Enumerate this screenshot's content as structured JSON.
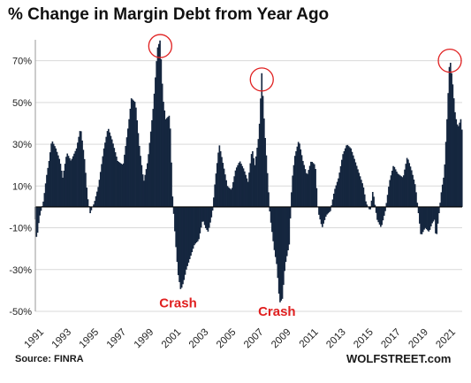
{
  "header": {
    "title": "% Change in Margin Debt from Year Ago"
  },
  "footer": {
    "source": "Source: FINRA",
    "brand": "WOLFSTREET.com"
  },
  "colors": {
    "bars": "#15263f",
    "annotation": "#e02020",
    "circle": "#e02020",
    "grid": "#d9d9d9"
  },
  "chart_data": {
    "type": "bar",
    "title": "% Change in Margin Debt from Year Ago",
    "xlabel": "",
    "ylabel": "",
    "x_range": [
      1991.0,
      2022.1
    ],
    "ylim": [
      -50,
      80
    ],
    "y_ticks": [
      70,
      50,
      30,
      10,
      -10,
      -30,
      -50
    ],
    "y_tick_labels": [
      "70%",
      "50%",
      "30%",
      "10%",
      "-10%",
      "-30%",
      "-50%"
    ],
    "x_tick_labels": [
      "1991",
      "1993",
      "1995",
      "1997",
      "1999",
      "2001",
      "2003",
      "2005",
      "2007",
      "2009",
      "2011",
      "2013",
      "2015",
      "2017",
      "2019",
      "2021"
    ],
    "grid": "horizontal",
    "series": [
      {
        "type": "monthly_bars",
        "keypoints": [
          [
            1991.0,
            -6
          ],
          [
            1991.1,
            -16
          ],
          [
            1991.3,
            -5
          ],
          [
            1991.6,
            3
          ],
          [
            1991.8,
            14
          ],
          [
            1992.0,
            22
          ],
          [
            1992.2,
            32
          ],
          [
            1992.5,
            28
          ],
          [
            1992.8,
            22
          ],
          [
            1993.0,
            14
          ],
          [
            1993.3,
            26
          ],
          [
            1993.6,
            22
          ],
          [
            1994.0,
            28
          ],
          [
            1994.3,
            38
          ],
          [
            1994.6,
            22
          ],
          [
            1994.8,
            5
          ],
          [
            1995.0,
            -3
          ],
          [
            1995.3,
            2
          ],
          [
            1995.6,
            10
          ],
          [
            1996.0,
            28
          ],
          [
            1996.3,
            38
          ],
          [
            1996.6,
            32
          ],
          [
            1997.0,
            22
          ],
          [
            1997.4,
            20
          ],
          [
            1997.8,
            40
          ],
          [
            1998.0,
            52
          ],
          [
            1998.3,
            50
          ],
          [
            1998.6,
            28
          ],
          [
            1998.9,
            12
          ],
          [
            1999.2,
            22
          ],
          [
            1999.6,
            48
          ],
          [
            1999.9,
            76
          ],
          [
            2000.1,
            80
          ],
          [
            2000.3,
            52
          ],
          [
            2000.5,
            42
          ],
          [
            2000.8,
            44
          ],
          [
            2001.0,
            5
          ],
          [
            2001.2,
            -15
          ],
          [
            2001.4,
            -32
          ],
          [
            2001.6,
            -40
          ],
          [
            2001.8,
            -36
          ],
          [
            2002.0,
            -30
          ],
          [
            2002.3,
            -24
          ],
          [
            2002.6,
            -18
          ],
          [
            2002.9,
            -16
          ],
          [
            2003.2,
            -6
          ],
          [
            2003.4,
            -10
          ],
          [
            2003.6,
            -12
          ],
          [
            2003.9,
            -3
          ],
          [
            2004.1,
            12
          ],
          [
            2004.4,
            30
          ],
          [
            2004.7,
            20
          ],
          [
            2005.0,
            10
          ],
          [
            2005.3,
            8
          ],
          [
            2005.6,
            18
          ],
          [
            2005.9,
            22
          ],
          [
            2006.2,
            18
          ],
          [
            2006.5,
            12
          ],
          [
            2006.8,
            28
          ],
          [
            2007.0,
            20
          ],
          [
            2007.3,
            35
          ],
          [
            2007.5,
            64
          ],
          [
            2007.7,
            38
          ],
          [
            2007.9,
            18
          ],
          [
            2008.1,
            -4
          ],
          [
            2008.4,
            -20
          ],
          [
            2008.6,
            -28
          ],
          [
            2008.8,
            -46
          ],
          [
            2009.0,
            -44
          ],
          [
            2009.2,
            -28
          ],
          [
            2009.5,
            -18
          ],
          [
            2009.7,
            12
          ],
          [
            2009.9,
            24
          ],
          [
            2010.2,
            32
          ],
          [
            2010.5,
            22
          ],
          [
            2010.8,
            15
          ],
          [
            2011.1,
            22
          ],
          [
            2011.4,
            20
          ],
          [
            2011.6,
            -2
          ],
          [
            2011.9,
            -10
          ],
          [
            2012.2,
            -4
          ],
          [
            2012.5,
            -2
          ],
          [
            2012.8,
            8
          ],
          [
            2013.1,
            14
          ],
          [
            2013.4,
            25
          ],
          [
            2013.7,
            30
          ],
          [
            2014.0,
            28
          ],
          [
            2014.3,
            22
          ],
          [
            2014.6,
            16
          ],
          [
            2014.9,
            10
          ],
          [
            2015.1,
            2
          ],
          [
            2015.4,
            -2
          ],
          [
            2015.6,
            8
          ],
          [
            2015.9,
            -6
          ],
          [
            2016.2,
            -10
          ],
          [
            2016.5,
            -2
          ],
          [
            2016.8,
            12
          ],
          [
            2017.1,
            20
          ],
          [
            2017.4,
            16
          ],
          [
            2017.8,
            14
          ],
          [
            2018.1,
            24
          ],
          [
            2018.4,
            18
          ],
          [
            2018.7,
            10
          ],
          [
            2018.9,
            -2
          ],
          [
            2019.1,
            -14
          ],
          [
            2019.4,
            -10
          ],
          [
            2019.7,
            -12
          ],
          [
            2019.9,
            -8
          ],
          [
            2020.1,
            -6
          ],
          [
            2020.2,
            -16
          ],
          [
            2020.4,
            -4
          ],
          [
            2020.6,
            8
          ],
          [
            2020.8,
            16
          ],
          [
            2021.0,
            42
          ],
          [
            2021.2,
            72
          ],
          [
            2021.4,
            60
          ],
          [
            2021.6,
            44
          ],
          [
            2021.8,
            38
          ],
          [
            2022.0,
            42
          ],
          [
            2022.1,
            36
          ]
        ]
      }
    ],
    "annotations": [
      {
        "text": "Crash",
        "x": 2001.4,
        "y": -46
      },
      {
        "text": "Crash",
        "x": 2008.6,
        "y": -50
      }
    ],
    "highlights": [
      {
        "x": 2000.1,
        "y": 77
      },
      {
        "x": 2007.5,
        "y": 61
      },
      {
        "x": 2021.2,
        "y": 70
      }
    ]
  }
}
